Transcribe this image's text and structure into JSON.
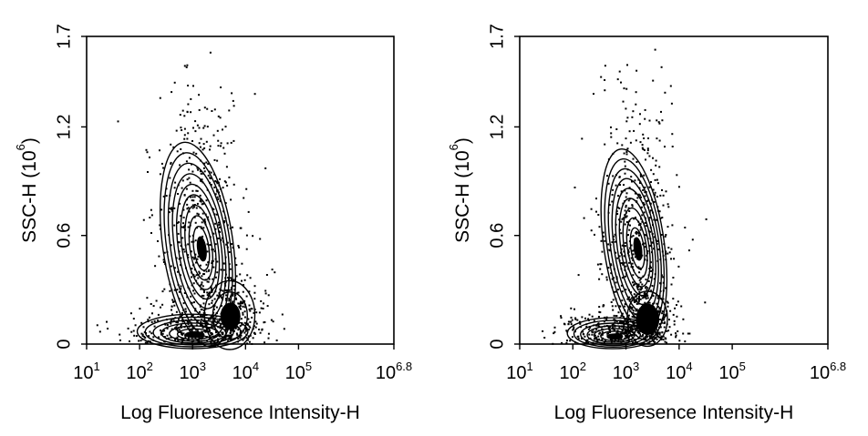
{
  "chart_data": [
    {
      "type": "scatter",
      "subtype": "flow-cytometry density contour plot",
      "xlabel": "Log Fluoresence Intensity-H",
      "ylabel": "SSC-H",
      "ylabel_unit": "(10^6)",
      "ylabel_unit_base": "(10",
      "ylabel_unit_exp": "6",
      "ylabel_unit_close": ")",
      "x_scale": "log",
      "xlim": [
        1,
        6.8
      ],
      "ylim": [
        0,
        1.7
      ],
      "x_ticks": [
        {
          "value": 1,
          "base": "10",
          "exp": "1"
        },
        {
          "value": 2,
          "base": "10",
          "exp": "2"
        },
        {
          "value": 3,
          "base": "10",
          "exp": "3"
        },
        {
          "value": 4,
          "base": "10",
          "exp": "4"
        },
        {
          "value": 5,
          "base": "10",
          "exp": "5"
        },
        {
          "value": 6.8,
          "base": "10",
          "exp": "6.8"
        }
      ],
      "y_ticks": [
        {
          "value": 0,
          "label": "0"
        },
        {
          "value": 0.6,
          "label": "0.6"
        },
        {
          "value": 1.2,
          "label": "1.2"
        },
        {
          "value": 1.7,
          "label": "1.7"
        }
      ],
      "grid": false,
      "populations": [
        {
          "x_log": 3.1,
          "y": 0.55,
          "sx": 0.35,
          "sy": 0.3,
          "levels": 10
        },
        {
          "x_log": 3.0,
          "y": 0.07,
          "sx": 0.55,
          "sy": 0.05,
          "levels": 7
        },
        {
          "x_log": 3.7,
          "y": 0.16,
          "sx": 0.25,
          "sy": 0.1,
          "levels": 3
        }
      ]
    },
    {
      "type": "scatter",
      "subtype": "flow-cytometry density contour plot",
      "xlabel": "Log Fluoresence Intensity-H",
      "ylabel": "SSC-H",
      "ylabel_unit": "(10^6)",
      "ylabel_unit_base": "(10",
      "ylabel_unit_exp": "6",
      "ylabel_unit_close": ")",
      "x_scale": "log",
      "xlim": [
        1,
        6.8
      ],
      "ylim": [
        0,
        1.7
      ],
      "x_ticks": [
        {
          "value": 1,
          "base": "10",
          "exp": "1"
        },
        {
          "value": 2,
          "base": "10",
          "exp": "2"
        },
        {
          "value": 3,
          "base": "10",
          "exp": "3"
        },
        {
          "value": 4,
          "base": "10",
          "exp": "4"
        },
        {
          "value": 5,
          "base": "10",
          "exp": "5"
        },
        {
          "value": 6.8,
          "base": "10",
          "exp": "6.8"
        }
      ],
      "y_ticks": [
        {
          "value": 0,
          "label": "0"
        },
        {
          "value": 0.6,
          "label": "0.6"
        },
        {
          "value": 1.2,
          "label": "1.2"
        },
        {
          "value": 1.7,
          "label": "1.7"
        }
      ],
      "grid": false,
      "populations": [
        {
          "x_log": 3.15,
          "y": 0.55,
          "sx": 0.3,
          "sy": 0.28,
          "levels": 10
        },
        {
          "x_log": 2.75,
          "y": 0.06,
          "sx": 0.45,
          "sy": 0.045,
          "levels": 7
        },
        {
          "x_log": 3.4,
          "y": 0.14,
          "sx": 0.2,
          "sy": 0.08,
          "levels": 2
        }
      ]
    }
  ]
}
